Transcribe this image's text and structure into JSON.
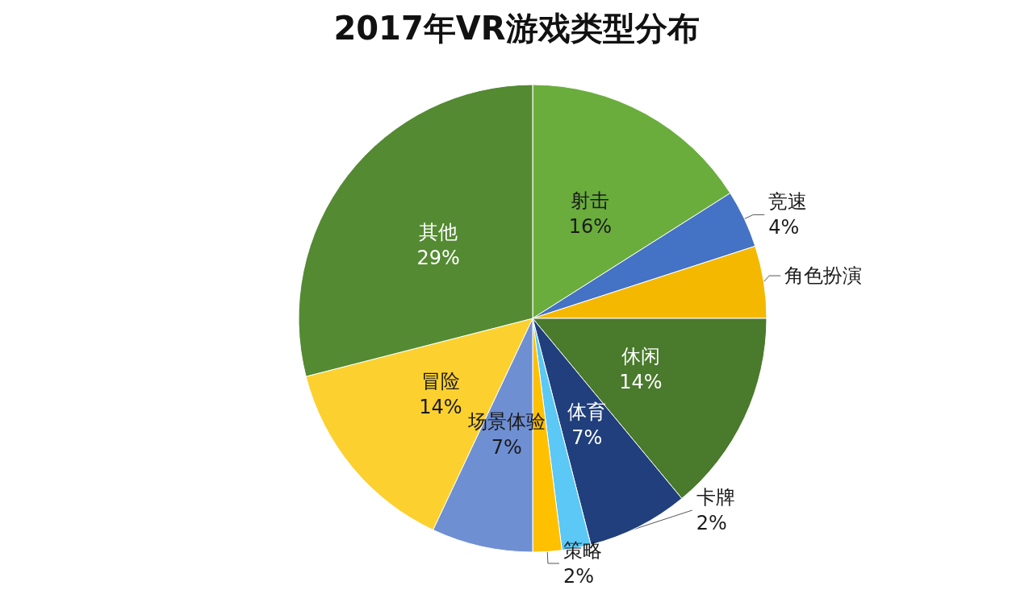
{
  "chart_data": {
    "type": "pie",
    "title": "2017年VR游戏类型分布",
    "categories": [
      "射击",
      "竞速",
      "角色扮演",
      "休闲",
      "体育",
      "卡牌",
      "策略",
      "场景体验",
      "冒险",
      "其他"
    ],
    "values": [
      16,
      4,
      5,
      14,
      7,
      2,
      2,
      7,
      14,
      29
    ],
    "colors": [
      "#6aad3d",
      "#4472c4",
      "#f5b800",
      "#4a7a2c",
      "#203f7c",
      "#5bc8f5",
      "#ffc000",
      "#6f8fd3",
      "#fcd02f",
      "#548a32"
    ],
    "value_labels": [
      "16%",
      "4%",
      null,
      "14%",
      "7%",
      "2%",
      "2%",
      "7%",
      "14%",
      "29%"
    ]
  }
}
